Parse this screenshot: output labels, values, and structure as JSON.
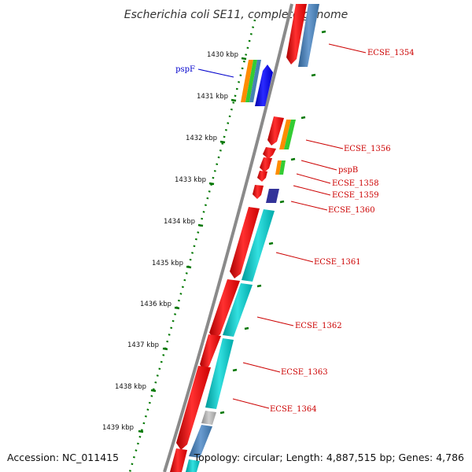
{
  "title": "Escherichia coli SE11, complete genome",
  "footer": {
    "accession": "Accession: NC_011415",
    "topology": "Topology: circular; Length: 4,887,515 bp; Genes: 4,786"
  },
  "kbp_ticks": [
    "1430 kbp",
    "1431 kbp",
    "1432 kbp",
    "1433 kbp",
    "1434 kbp",
    "1435 kbp",
    "1436 kbp",
    "1437 kbp",
    "1438 kbp",
    "1439 kbp"
  ],
  "gene_labels": [
    "pspF",
    "ECSE_1354",
    "ECSE_1356",
    "pspB",
    "ECSE_1358",
    "ECSE_1359",
    "ECSE_1360",
    "ECSE_1361",
    "ECSE_1362",
    "ECSE_1363",
    "ECSE_1364"
  ],
  "colors": {
    "cds_forward": "#ff0000",
    "cds_reverse": "#0000ff",
    "cog_orange": "#ff8c00",
    "cog_green": "#33cc33",
    "cog_cyan": "#00cccc",
    "cog_steel": "#4682b4",
    "cog_navy": "#333399",
    "backbone": "#808080",
    "tick": "#007700",
    "label_red": "#cc0000",
    "label_blue": "#0000cc"
  }
}
